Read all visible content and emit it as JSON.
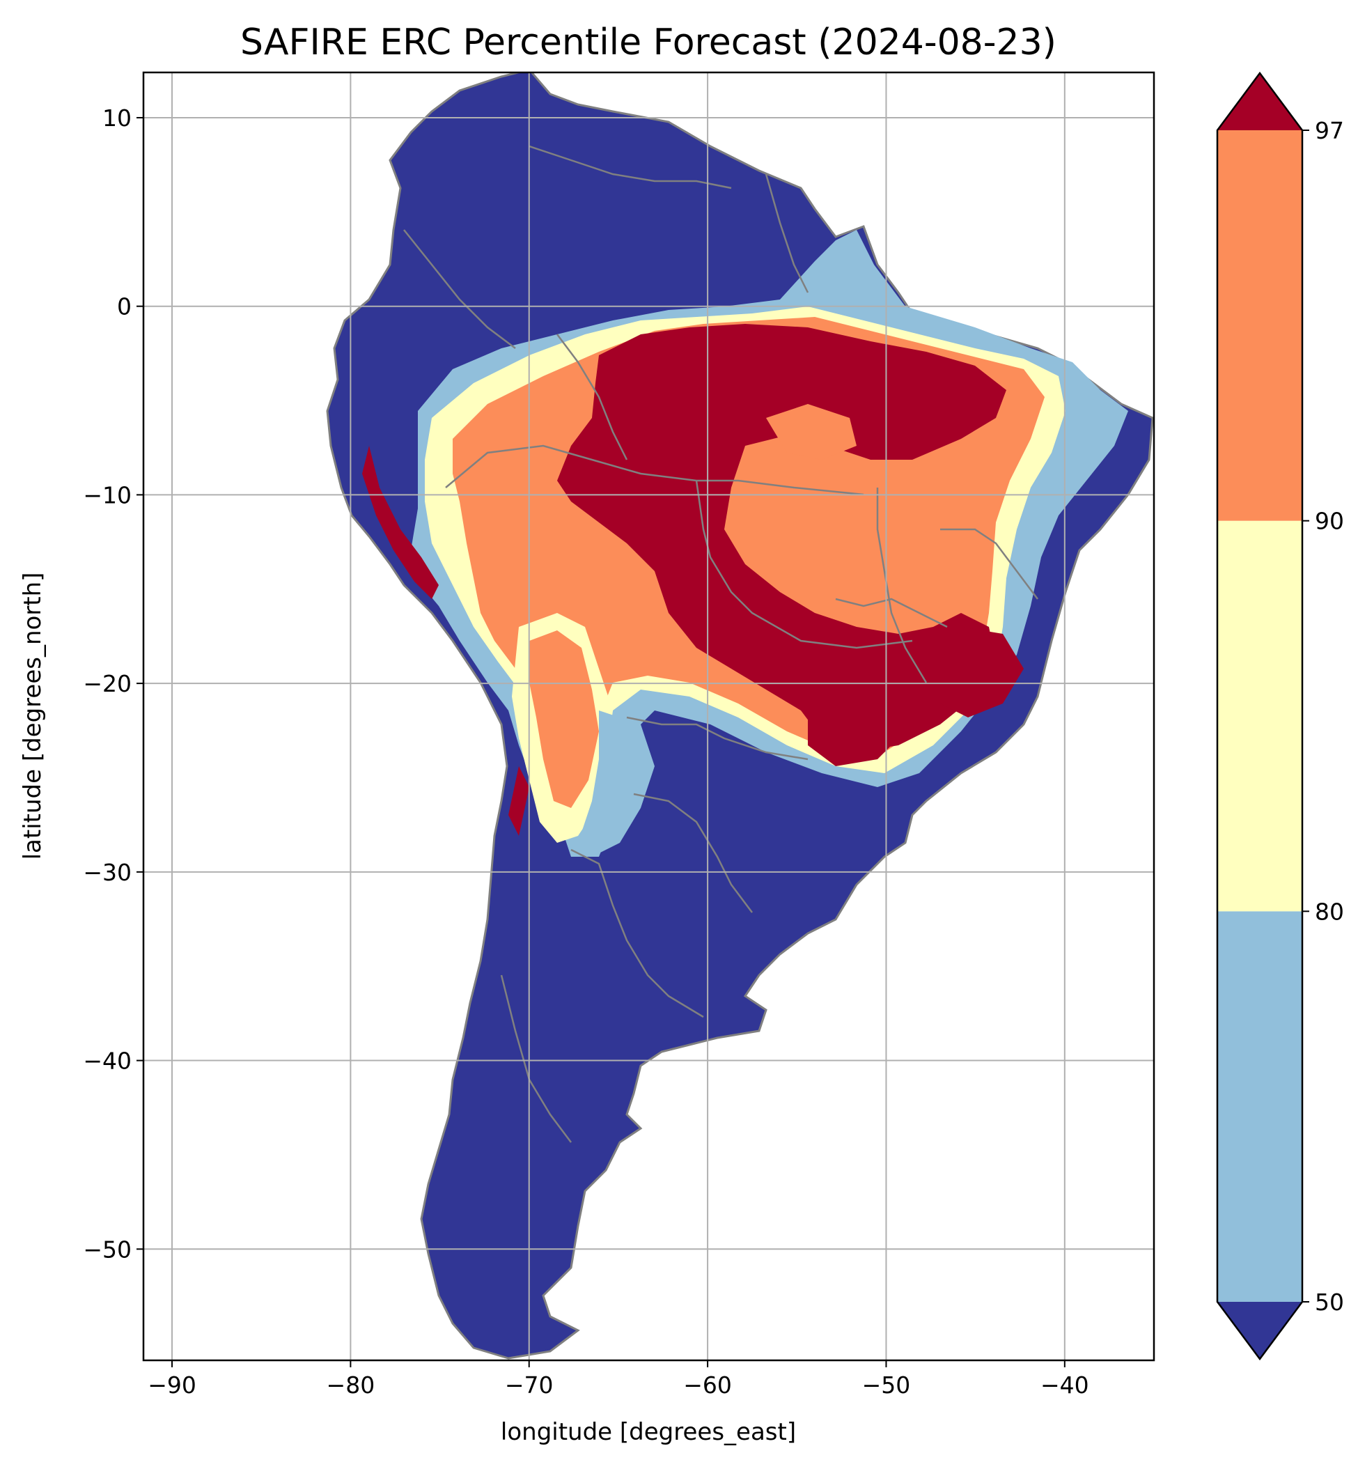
{
  "map": {
    "title": "SAFIRE ERC Percentile Forecast (2024-08-23)",
    "xlabel": "longitude [degrees_east]",
    "ylabel": "latitude [degrees_north]",
    "xlim": [
      -91.6,
      -35.0
    ],
    "ylim": [
      -55.9,
      12.4
    ],
    "x_ticks": [
      -90,
      -80,
      -70,
      -60,
      -50,
      -40
    ],
    "y_ticks": [
      10,
      0,
      -10,
      -20,
      -30,
      -40,
      -50
    ],
    "x_tick_labels": [
      "−90",
      "−80",
      "−70",
      "−60",
      "−50",
      "−40"
    ],
    "y_tick_labels": [
      "10",
      "0",
      "−10",
      "−20",
      "−30",
      "−40",
      "−50"
    ],
    "grid": true,
    "land_borders_color": "#808080",
    "grid_color": "#b0b0b0",
    "regions": {
      "low": "#313695",
      "moderate": "#91bfdb",
      "elevated": "#ffffbf",
      "high": "#fc8d59",
      "extreme": "#a50026"
    }
  },
  "colorbar": {
    "extend": "both",
    "boundaries": [
      50,
      80,
      90,
      97
    ],
    "tick_labels": [
      "50",
      "80",
      "90",
      "97"
    ],
    "bins": [
      {
        "from": 50,
        "to": 80,
        "color": "#91bfdb"
      },
      {
        "from": 80,
        "to": 90,
        "color": "#ffffbf"
      },
      {
        "from": 90,
        "to": 97,
        "color": "#fc8d59"
      }
    ],
    "under_color": "#313695",
    "over_color": "#a50026"
  }
}
